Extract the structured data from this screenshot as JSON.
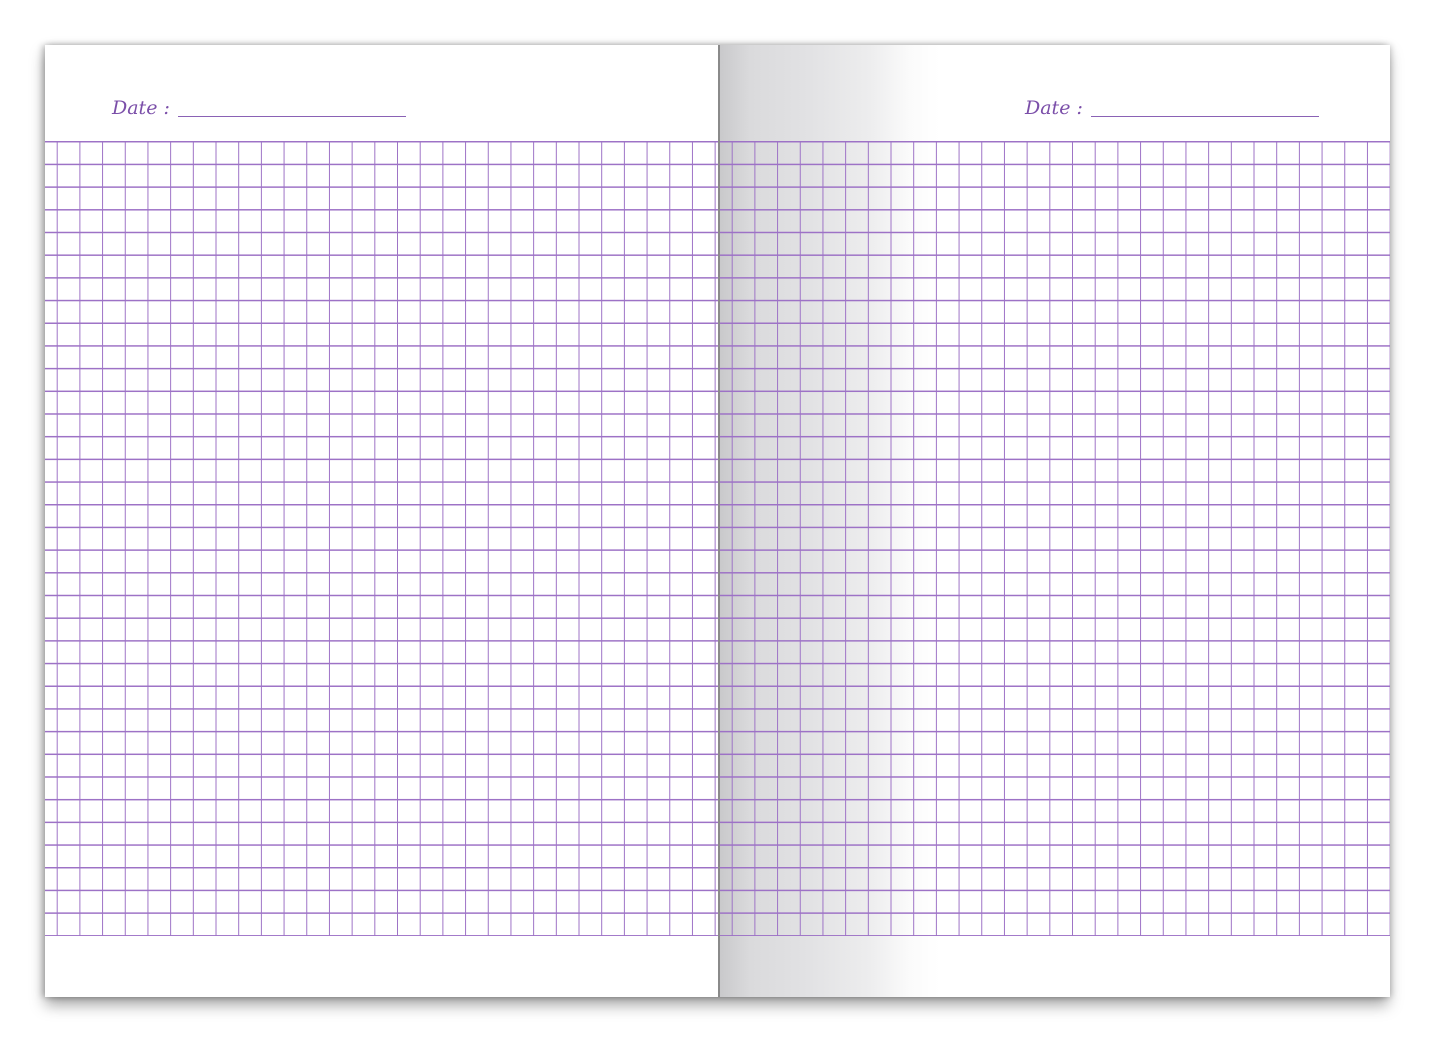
{
  "left_page": {
    "date_label": "Date :"
  },
  "right_page": {
    "date_label": "Date :"
  },
  "colors": {
    "grid": "#9d72c6",
    "text": "#7b4fa9"
  }
}
